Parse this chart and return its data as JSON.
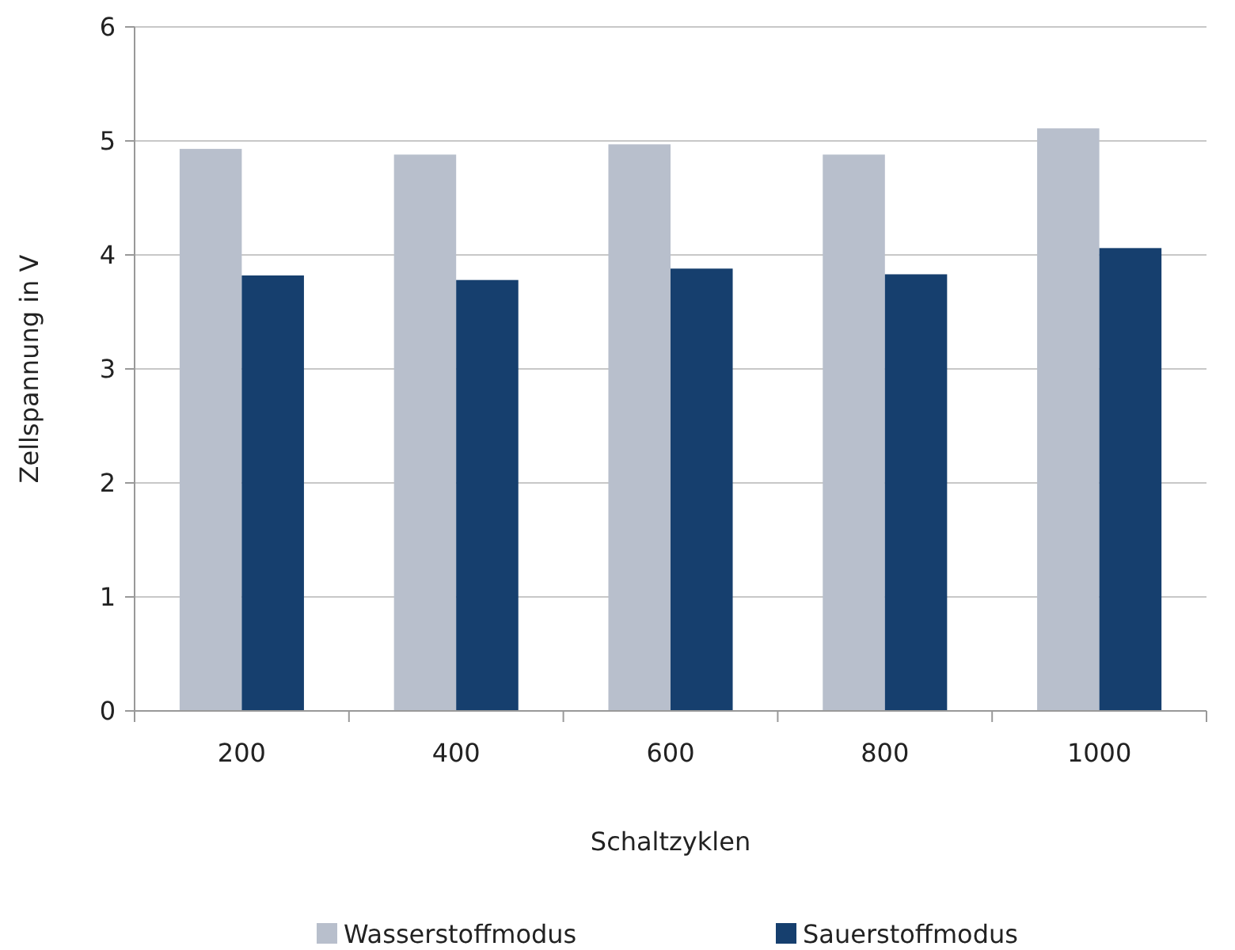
{
  "chart_data": {
    "type": "bar",
    "xlabel": "Schaltzyklen",
    "ylabel": "Zellspannung in V",
    "categories": [
      "200",
      "400",
      "600",
      "800",
      "1000"
    ],
    "series": [
      {
        "name": "Wasserstoffmodus",
        "color": "#b8bfcc",
        "values": [
          4.93,
          4.88,
          4.97,
          4.88,
          5.11
        ]
      },
      {
        "name": "Sauerstoffmodus",
        "color": "#163f6e",
        "values": [
          3.82,
          3.78,
          3.88,
          3.83,
          4.06
        ]
      }
    ],
    "ylim": [
      0,
      6
    ],
    "yticks": [
      0,
      1,
      2,
      3,
      4,
      5,
      6
    ],
    "grid": "y",
    "legend": "bottom"
  }
}
